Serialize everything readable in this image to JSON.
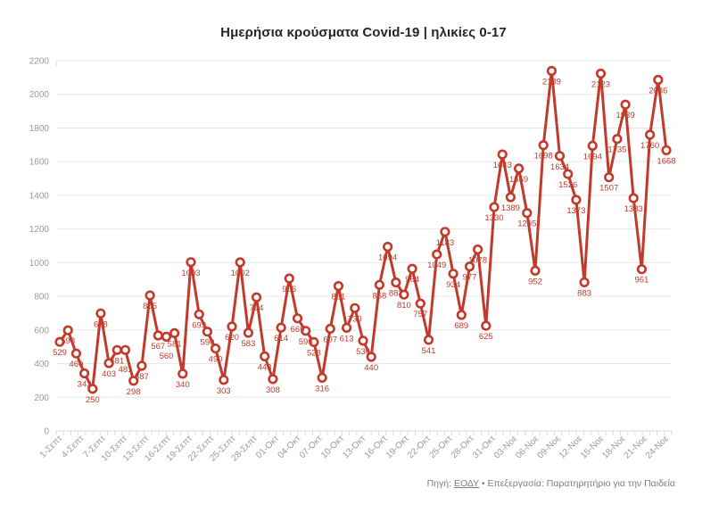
{
  "title": "Ημερήσια κρούσματα Covid-19 | ηλικίες 0-17",
  "footer": {
    "prefix": "Πηγή:",
    "source_link": "ΕΟΔΥ",
    "bullet": "•",
    "text": "Επεξεργασία: Παρατηρητήριο για την Παιδεία"
  },
  "colors": {
    "line": "#c23a2b",
    "marker_fill": "#ffffff",
    "point_label": "#c23a2b",
    "axis_text": "#9a9a9a",
    "grid": "#e8e8e8",
    "zero_line": "#d8d8d8"
  },
  "chart_data": {
    "type": "line",
    "title": "Ημερήσια κρούσματα Covid-19 | ηλικίες 0-17",
    "xlabel": "",
    "ylabel": "",
    "ylim": [
      0,
      2200
    ],
    "y_ticks": [
      0,
      200,
      400,
      600,
      800,
      1000,
      1200,
      1400,
      1600,
      1800,
      2000,
      2200
    ],
    "grid": "horizontal",
    "legend": "none",
    "point_labels_visible": true,
    "x_tick_labels": [
      "1-Σεπτ",
      "4-Σεπτ",
      "7-Σεπτ",
      "10-Σεπτ",
      "13-Σεπτ",
      "16-Σεπτ",
      "19-Σεπτ",
      "22-Σεπτ",
      "25-Σεπτ",
      "28-Σεπτ",
      "01-Οκτ",
      "04-Οκτ",
      "07-Οκτ",
      "10-Οκτ",
      "13-Οκτ",
      "16-Οκτ",
      "19-Οκτ",
      "22-Οκτ",
      "25-Οκτ",
      "28-Οκτ",
      "31-Οκτ",
      "03-Νοε",
      "06-Νοε",
      "09-Νοε",
      "12-Νοε",
      "15-Νοε",
      "18-Νοε",
      "21-Νοε",
      "24-Νοε"
    ],
    "series": [
      {
        "name": "Ημερήσια κρούσματα ηλικίες 0-17",
        "values": [
          529,
          598,
          460,
          342,
          250,
          698,
          403,
          481,
          481,
          298,
          387,
          805,
          567,
          560,
          581,
          340,
          1003,
          693,
          590,
          490,
          303,
          620,
          1002,
          583,
          794,
          443,
          308,
          614,
          906,
          669,
          595,
          528,
          316,
          607,
          861,
          613,
          730,
          536,
          440,
          868,
          1094,
          882,
          810,
          964,
          757,
          541,
          1049,
          1183,
          934,
          689,
          977,
          1078,
          625,
          1330,
          1643,
          1389,
          1559,
          1295,
          952,
          1698,
          2139,
          1634,
          1526,
          1373,
          883,
          1694,
          2123,
          1507,
          1735,
          1939,
          1383,
          961,
          1760,
          2086,
          1668
        ]
      }
    ]
  }
}
